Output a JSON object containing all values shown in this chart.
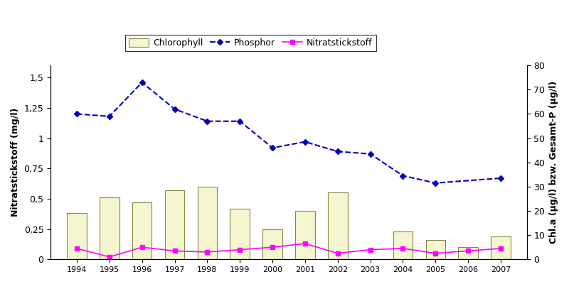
{
  "years": [
    1994,
    1995,
    1996,
    1997,
    1998,
    1999,
    2000,
    2001,
    2002,
    2003,
    2004,
    2005,
    2006,
    2007
  ],
  "chlorophyll": [
    0.38,
    0.51,
    0.47,
    0.57,
    0.6,
    0.42,
    0.25,
    0.4,
    0.55,
    0.0,
    0.23,
    0.16,
    0.1,
    0.19
  ],
  "phosphor": [
    1.2,
    1.18,
    1.46,
    1.24,
    1.14,
    1.14,
    0.92,
    0.97,
    0.89,
    0.87,
    0.69,
    0.63,
    null,
    0.67
  ],
  "nitrat": [
    0.09,
    0.02,
    0.1,
    0.07,
    0.06,
    0.08,
    0.1,
    0.13,
    0.05,
    0.08,
    0.09,
    0.05,
    0.07,
    0.09
  ],
  "bar_color": "#f5f5d0",
  "bar_edgecolor": "#888844",
  "phosphor_color": "#0000bb",
  "nitrat_color": "#ff00ff",
  "left_ylabel": "Nitratstickstoff (mg/l)",
  "right_ylabel": "Chl.a (µg/l) bzw. Gesamt-P (µg/l)",
  "left_ylim": [
    0,
    1.6
  ],
  "left_yticks": [
    0,
    0.25,
    0.5,
    0.75,
    1.0,
    1.25,
    1.5
  ],
  "left_yticklabels": [
    "0",
    "0,25",
    "0,5",
    "0,75",
    "1",
    "1,25",
    "1,5"
  ],
  "right_ylim": [
    0,
    80
  ],
  "right_yticks": [
    0,
    10,
    20,
    30,
    40,
    50,
    60,
    70,
    80
  ],
  "legend_labels": [
    "Chlorophyll",
    "Phosphor",
    "Nitratstickstoff"
  ],
  "background_color": "#ffffff",
  "fig_width": 8.0,
  "fig_height": 4.0
}
